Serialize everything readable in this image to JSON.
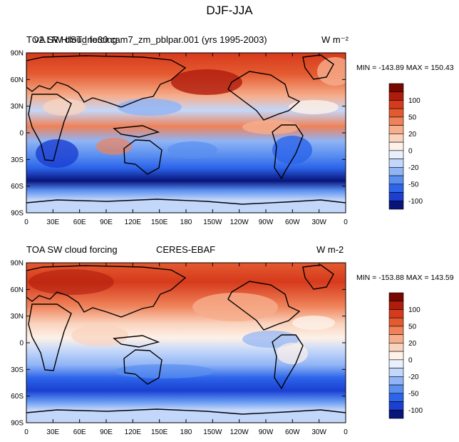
{
  "figure": {
    "title": "DJF-JJA"
  },
  "colorbar": {
    "colors": [
      "#08147a",
      "#1b3fd1",
      "#2c64ea",
      "#5a8ff0",
      "#90b4f5",
      "#c3d7fa",
      "#e8f0fd",
      "#fdf1e8",
      "#fad3bd",
      "#f6ae8c",
      "#ef8259",
      "#e45a30",
      "#d63a1c",
      "#b01c0c",
      "#780700"
    ],
    "tick_labels": [
      "100",
      "50",
      "20",
      "0",
      "-20",
      "-50",
      "-100"
    ]
  },
  "chart_data": [
    {
      "type": "heatmap",
      "title_left": "TOA SW cloud forcing",
      "title_center": "v2.LR.HIST_ne30.cam7_zm_pblpar.001 (yrs 1995-2003)",
      "units": "W m⁻²",
      "stats": "MIN = -143.89 MAX = 150.43",
      "min": -143.89,
      "max": 150.43,
      "x_ticks": [
        "0",
        "30E",
        "60E",
        "90E",
        "120E",
        "150E",
        "180",
        "150W",
        "120W",
        "90W",
        "60W",
        "30W",
        "0"
      ],
      "y_ticks": [
        "90N",
        "60N",
        "30N",
        "0",
        "30S",
        "60S",
        "90S"
      ],
      "xlim": [
        0,
        360
      ],
      "ylim": [
        -90,
        90
      ],
      "levels": [
        -100,
        -50,
        -20,
        0,
        20,
        50,
        100
      ]
    },
    {
      "type": "heatmap",
      "title_left": "TOA SW cloud forcing",
      "title_center": "CERES-EBAF",
      "units": "W m-2",
      "stats": "MIN = -153.88 MAX = 143.59",
      "min": -153.88,
      "max": 143.59,
      "x_ticks": [
        "0",
        "30E",
        "60E",
        "90E",
        "120E",
        "150E",
        "180",
        "150W",
        "120W",
        "90W",
        "60W",
        "30W",
        "0"
      ],
      "y_ticks": [
        "90N",
        "60N",
        "30N",
        "0",
        "30S",
        "60S",
        "90S"
      ],
      "xlim": [
        0,
        360
      ],
      "ylim": [
        -90,
        90
      ],
      "levels": [
        -100,
        -50,
        -20,
        0,
        20,
        50,
        100
      ]
    }
  ]
}
